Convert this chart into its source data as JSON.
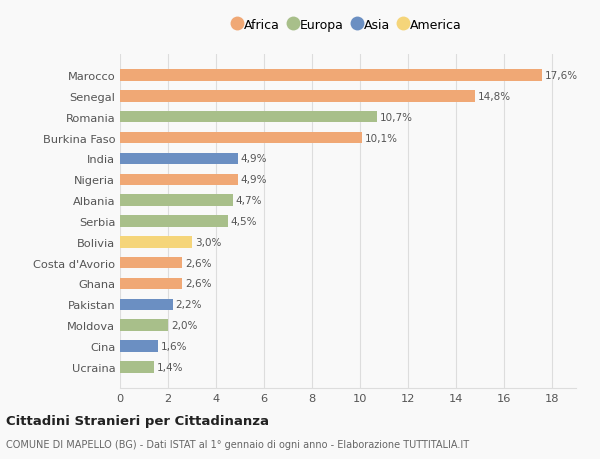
{
  "categories": [
    "Ucraina",
    "Cina",
    "Moldova",
    "Pakistan",
    "Ghana",
    "Costa d'Avorio",
    "Bolivia",
    "Serbia",
    "Albania",
    "Nigeria",
    "India",
    "Burkina Faso",
    "Romania",
    "Senegal",
    "Marocco"
  ],
  "values": [
    1.4,
    1.6,
    2.0,
    2.2,
    2.6,
    2.6,
    3.0,
    4.5,
    4.7,
    4.9,
    4.9,
    10.1,
    10.7,
    14.8,
    17.6
  ],
  "labels": [
    "1,4%",
    "1,6%",
    "2,0%",
    "2,2%",
    "2,6%",
    "2,6%",
    "3,0%",
    "4,5%",
    "4,7%",
    "4,9%",
    "4,9%",
    "10,1%",
    "10,7%",
    "14,8%",
    "17,6%"
  ],
  "colors": [
    "#a8bf8a",
    "#6b8fc2",
    "#a8bf8a",
    "#6b8fc2",
    "#f0a875",
    "#f0a875",
    "#f5d57a",
    "#a8bf8a",
    "#a8bf8a",
    "#f0a875",
    "#6b8fc2",
    "#f0a875",
    "#a8bf8a",
    "#f0a875",
    "#f0a875"
  ],
  "legend": [
    {
      "label": "Africa",
      "color": "#f0a875"
    },
    {
      "label": "Europa",
      "color": "#a8bf8a"
    },
    {
      "label": "Asia",
      "color": "#6b8fc2"
    },
    {
      "label": "America",
      "color": "#f5d57a"
    }
  ],
  "xlim": [
    0,
    19
  ],
  "xticks": [
    0,
    2,
    4,
    6,
    8,
    10,
    12,
    14,
    16,
    18
  ],
  "title1": "Cittadini Stranieri per Cittadinanza",
  "title2": "COMUNE DI MAPELLO (BG) - Dati ISTAT al 1° gennaio di ogni anno - Elaborazione TUTTITALIA.IT",
  "bg_color": "#f9f9f9",
  "grid_color": "#dddddd",
  "bar_height": 0.55
}
